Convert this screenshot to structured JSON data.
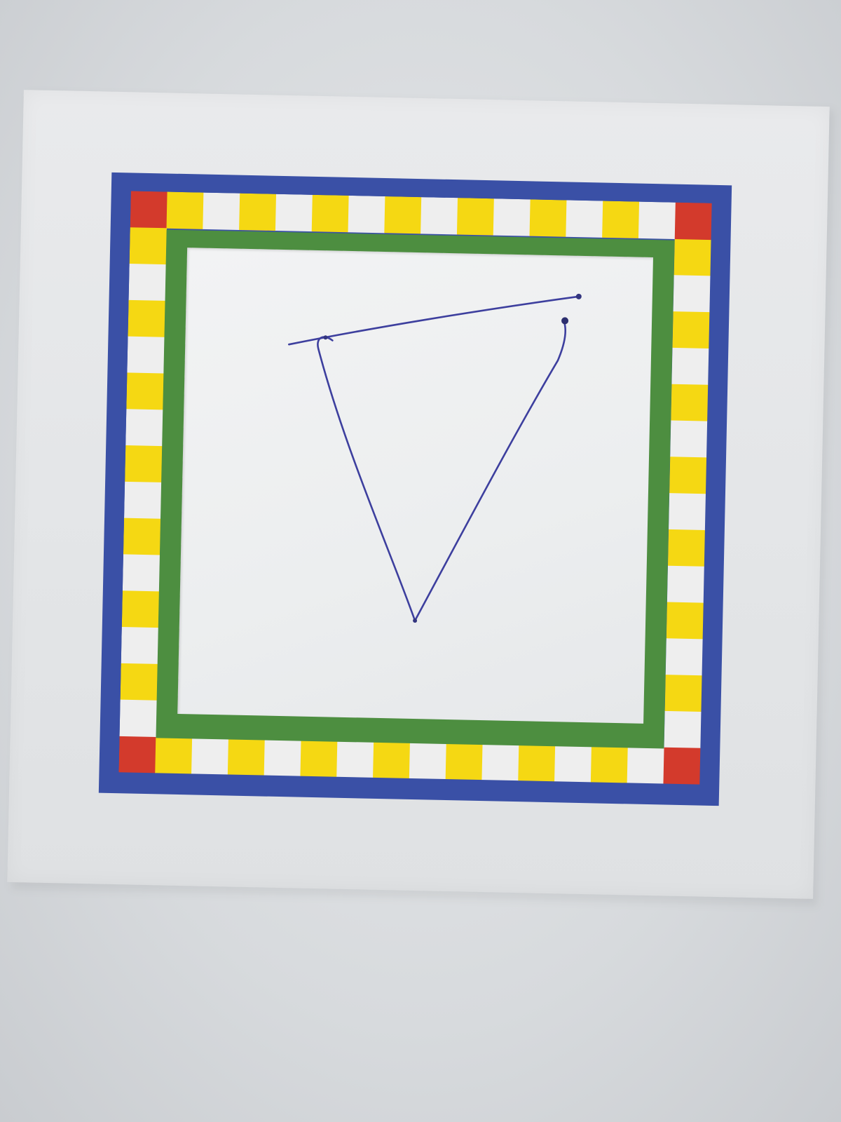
{
  "scene": {
    "description_colors": {
      "background": "#d9dcdf",
      "paper": "#e6e8ea",
      "outer_border": "#3a50a6",
      "checker_yellow": "#f5d813",
      "checker_white": "#eeeeee",
      "corner_red": "#d33a2c",
      "inner_border": "#4d8e40",
      "card": "#eeeff0",
      "ink": "#3d3f9e"
    },
    "checker_squares_per_side": 16,
    "drawing_icon": "hand-drawn-triangle"
  }
}
